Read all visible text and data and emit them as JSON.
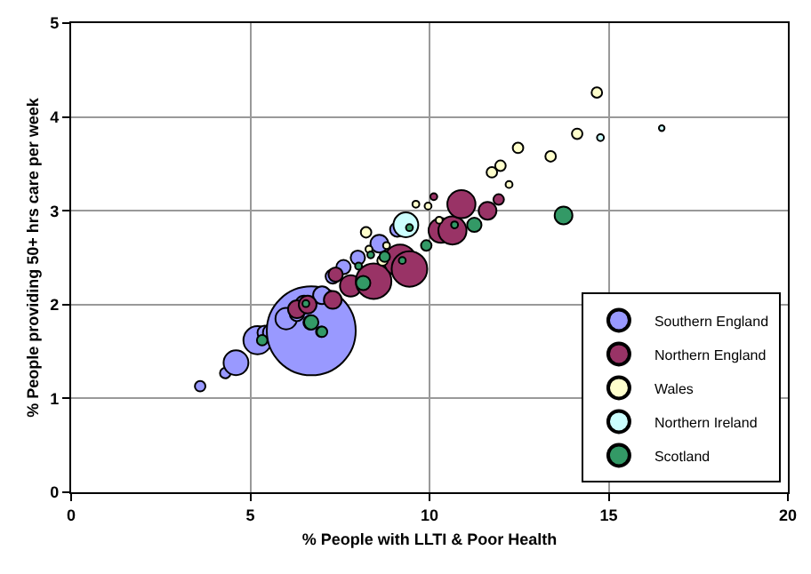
{
  "chart_data": {
    "type": "bubble",
    "xlabel": "% People with LLTI & Poor Health",
    "ylabel": "% People providing 50+ hrs care per week",
    "xlim": [
      0,
      20
    ],
    "xticks": [
      0,
      5,
      10,
      15,
      20
    ],
    "ylim": [
      0,
      5
    ],
    "yticks": [
      0,
      1,
      2,
      3,
      4,
      5
    ],
    "grid": true,
    "legend": "bottom right",
    "series": [
      {
        "name": "Southern England",
        "color": "#9999ff",
        "x": [
          3.6,
          4.3,
          4.6,
          5.2,
          5.4,
          5.6,
          6.7,
          6.0,
          6.3,
          6.5,
          7.0,
          7.3,
          7.6,
          8.0,
          8.6,
          9.1
        ],
        "values": [
          1.13,
          1.27,
          1.38,
          1.62,
          1.7,
          1.7,
          1.72,
          1.85,
          1.9,
          2.0,
          2.1,
          2.3,
          2.4,
          2.5,
          2.65,
          2.8
        ],
        "sizes": [
          0.014,
          0.014,
          0.078,
          0.1,
          0.026,
          0.04,
          1,
          0.058,
          0.026,
          0.04,
          0.04,
          0.026,
          0.026,
          0.026,
          0.04,
          0.026
        ]
      },
      {
        "name": "Northern England",
        "color": "#993366",
        "x": [
          6.3,
          6.6,
          7.3,
          7.38,
          7.8,
          8.44,
          9.18,
          9.44,
          10.32,
          10.64,
          10.89,
          11.62,
          11.93,
          10.12
        ],
        "values": [
          1.95,
          2.0,
          2.05,
          2.32,
          2.2,
          2.25,
          2.47,
          2.38,
          2.79,
          2.79,
          3.07,
          3.0,
          3.12,
          3.15
        ],
        "sizes": [
          0.04,
          0.04,
          0.04,
          0.026,
          0.058,
          0.16,
          0.13,
          0.16,
          0.078,
          0.1,
          0.1,
          0.04,
          0.014,
          0.006
        ]
      },
      {
        "name": "Wales",
        "color": "#ffffcc",
        "x": [
          8.23,
          8.31,
          8.69,
          8.8,
          9.62,
          9.96,
          10.27,
          11.74,
          11.98,
          12.22,
          12.47,
          13.38,
          14.12,
          14.67
        ],
        "values": [
          2.77,
          2.59,
          2.47,
          2.63,
          3.07,
          3.05,
          2.9,
          3.41,
          3.48,
          3.28,
          3.67,
          3.58,
          3.82,
          4.26
        ],
        "sizes": [
          0.014,
          0.006,
          0.014,
          0.006,
          0.006,
          0.006,
          0.006,
          0.014,
          0.014,
          0.006,
          0.014,
          0.014,
          0.014,
          0.014
        ]
      },
      {
        "name": "Northern Ireland",
        "color": "#ccffff",
        "x": [
          9.34,
          14.77,
          16.48
        ],
        "values": [
          2.85,
          3.78,
          3.88
        ],
        "sizes": [
          0.078,
          0.006,
          0.004
        ]
      },
      {
        "name": "Scotland",
        "color": "#339966",
        "x": [
          5.33,
          6.55,
          6.68,
          6.7,
          6.98,
          7.0,
          8.02,
          8.15,
          8.36,
          8.75,
          9.24,
          9.44,
          9.91,
          10.7,
          11.25,
          13.74
        ],
        "values": [
          1.62,
          2.01,
          1.81,
          1.81,
          1.71,
          1.71,
          2.41,
          2.23,
          2.53,
          2.51,
          2.47,
          2.82,
          2.63,
          2.85,
          2.85,
          2.95
        ],
        "sizes": [
          0.014,
          0.006,
          0.026,
          0.026,
          0.014,
          0.014,
          0.006,
          0.026,
          0.006,
          0.014,
          0.006,
          0.006,
          0.014,
          0.006,
          0.026,
          0.04
        ]
      }
    ]
  }
}
